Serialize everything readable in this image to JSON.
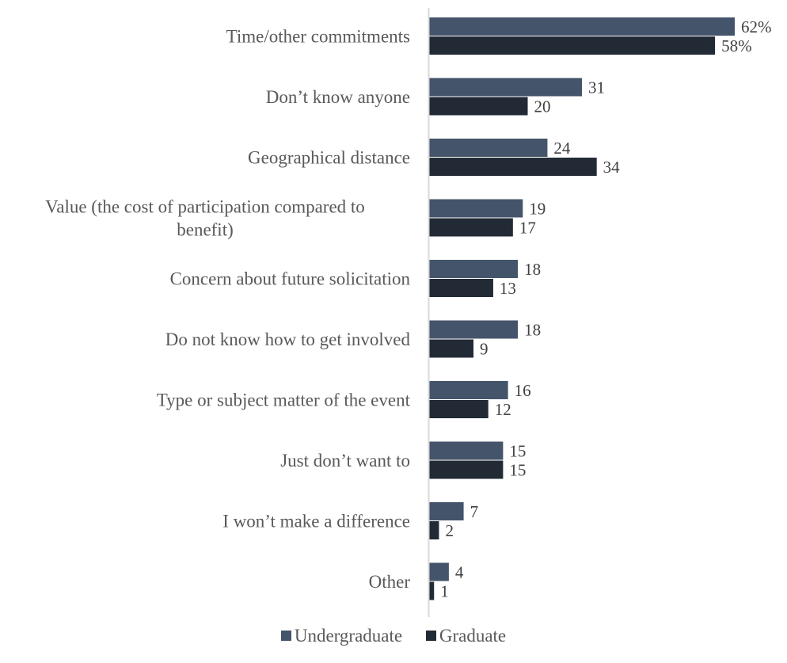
{
  "chart_data": {
    "type": "bar",
    "orientation": "horizontal",
    "categories": [
      [
        "Time/other commitments"
      ],
      [
        "Don’t know anyone"
      ],
      [
        "Geographical distance"
      ],
      [
        "Value (the cost of participation compared to",
        "benefit)"
      ],
      [
        "Concern about future solicitation"
      ],
      [
        "Do not know how to get involved"
      ],
      [
        "Type or subject matter of the event"
      ],
      [
        "Just don’t want to"
      ],
      [
        "I won’t make a difference"
      ],
      [
        "Other"
      ]
    ],
    "series": [
      {
        "name": "Undergraduate",
        "color": "#44546a",
        "values": [
          62,
          31,
          24,
          19,
          18,
          18,
          16,
          15,
          7,
          4
        ],
        "labels": [
          "62%",
          "31",
          "24",
          "19",
          "18",
          "18",
          "16",
          "15",
          "7",
          "4"
        ]
      },
      {
        "name": "Graduate",
        "color": "#222a35",
        "values": [
          58,
          20,
          34,
          17,
          13,
          9,
          12,
          15,
          2,
          1
        ],
        "labels": [
          "58%",
          "20",
          "34",
          "17",
          "13",
          "9",
          "12",
          "15",
          "2",
          "1"
        ]
      }
    ],
    "xlim": [
      0,
      62
    ],
    "grid": false,
    "legend_position": "bottom",
    "axis_color": "#d9d9d9"
  }
}
